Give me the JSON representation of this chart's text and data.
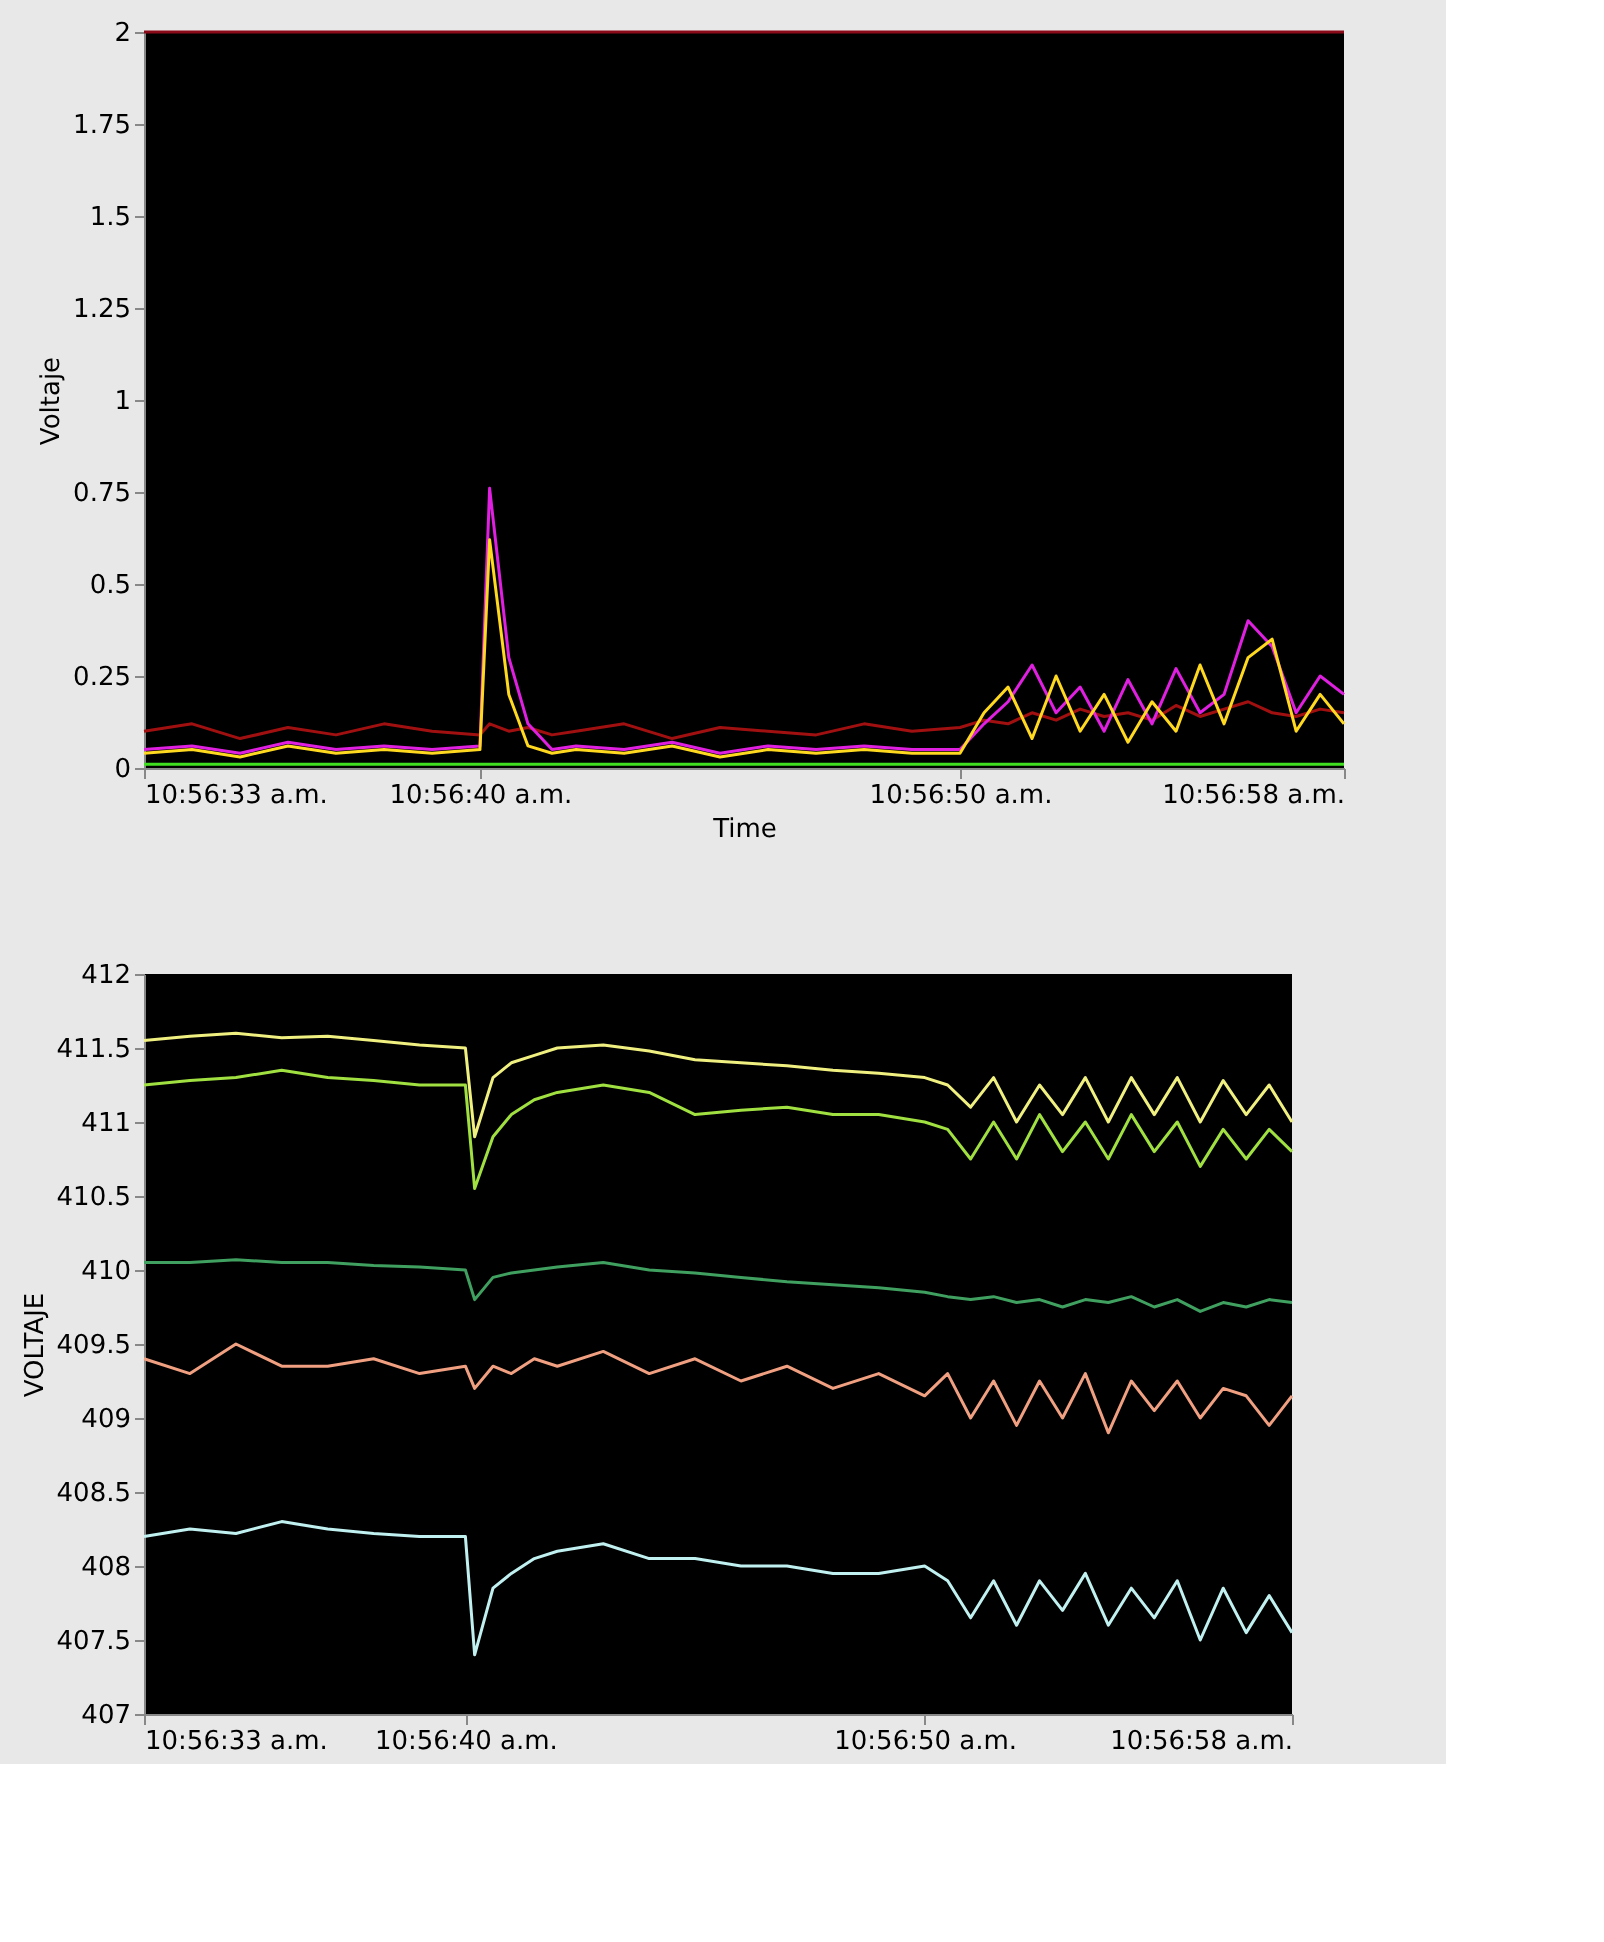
{
  "chart_data": [
    {
      "type": "line",
      "xlabel": "Time",
      "ylabel": "Voltaje",
      "ylim": [
        0,
        2
      ],
      "yticks": [
        0,
        0.25,
        0.5,
        0.75,
        1,
        1.25,
        1.5,
        1.75,
        2
      ],
      "xlim": [
        10.9425,
        10.949444
      ],
      "xticks": [
        {
          "value": 10.9425,
          "label": "10:56:33 a.m."
        },
        {
          "value": 10.944444,
          "label": "10:56:40 a.m."
        },
        {
          "value": 10.947222,
          "label": "10:56:50 a.m."
        },
        {
          "value": 10.949444,
          "label": "10:56:58 a.m."
        }
      ],
      "x": [
        10.9425,
        10.942778,
        10.943056,
        10.943333,
        10.943611,
        10.943889,
        10.944167,
        10.944444,
        10.9445,
        10.944611,
        10.944722,
        10.944861,
        10.945,
        10.945278,
        10.945556,
        10.945833,
        10.946111,
        10.946389,
        10.946667,
        10.946944,
        10.947222,
        10.947361,
        10.9475,
        10.947639,
        10.947778,
        10.947917,
        10.948056,
        10.948194,
        10.948333,
        10.948472,
        10.948611,
        10.94875,
        10.948889,
        10.949028,
        10.949167,
        10.949306,
        10.949444
      ],
      "grid": false,
      "legend": false,
      "series": [
        {
          "color": "#8b0a1a",
          "values": [
            2,
            2,
            2,
            2,
            2,
            2,
            2,
            2,
            2,
            2,
            2,
            2,
            2,
            2,
            2,
            2,
            2,
            2,
            2,
            2,
            2,
            2,
            2,
            2,
            2,
            2,
            2,
            2,
            2,
            2,
            2,
            2,
            2,
            2,
            2,
            2,
            2
          ]
        },
        {
          "color": "#a01010",
          "values": [
            0.1,
            0.12,
            0.08,
            0.11,
            0.09,
            0.12,
            0.1,
            0.09,
            0.12,
            0.1,
            0.11,
            0.09,
            0.1,
            0.12,
            0.08,
            0.11,
            0.1,
            0.09,
            0.12,
            0.1,
            0.11,
            0.13,
            0.12,
            0.15,
            0.13,
            0.16,
            0.14,
            0.15,
            0.13,
            0.17,
            0.14,
            0.16,
            0.18,
            0.15,
            0.14,
            0.16,
            0.15
          ]
        },
        {
          "color": "#e020e0",
          "values": [
            0.05,
            0.06,
            0.04,
            0.07,
            0.05,
            0.06,
            0.05,
            0.06,
            0.76,
            0.3,
            0.12,
            0.05,
            0.06,
            0.05,
            0.07,
            0.04,
            0.06,
            0.05,
            0.06,
            0.05,
            0.05,
            0.12,
            0.18,
            0.28,
            0.15,
            0.22,
            0.1,
            0.24,
            0.12,
            0.27,
            0.15,
            0.2,
            0.4,
            0.33,
            0.15,
            0.25,
            0.2
          ]
        },
        {
          "color": "#ffd820",
          "values": [
            0.04,
            0.05,
            0.03,
            0.06,
            0.04,
            0.05,
            0.04,
            0.05,
            0.62,
            0.2,
            0.06,
            0.04,
            0.05,
            0.04,
            0.06,
            0.03,
            0.05,
            0.04,
            0.05,
            0.04,
            0.04,
            0.15,
            0.22,
            0.08,
            0.25,
            0.1,
            0.2,
            0.07,
            0.18,
            0.1,
            0.28,
            0.12,
            0.3,
            0.35,
            0.1,
            0.2,
            0.12
          ]
        },
        {
          "color": "#40e020",
          "values": [
            0.01,
            0.01,
            0.01,
            0.01,
            0.01,
            0.01,
            0.01,
            0.01,
            0.01,
            0.01,
            0.01,
            0.01,
            0.01,
            0.01,
            0.01,
            0.01,
            0.01,
            0.01,
            0.01,
            0.01,
            0.01,
            0.01,
            0.01,
            0.01,
            0.01,
            0.01,
            0.01,
            0.01,
            0.01,
            0.01,
            0.01,
            0.01,
            0.01,
            0.01,
            0.01,
            0.01,
            0.01
          ]
        }
      ]
    },
    {
      "type": "line",
      "ylabel": "VOLTAJE",
      "ylim": [
        407,
        412
      ],
      "yticks": [
        407,
        407.5,
        408,
        408.5,
        409,
        409.5,
        410,
        410.5,
        411,
        411.5,
        412
      ],
      "xlim": [
        10.9425,
        10.949444
      ],
      "xticks": [
        {
          "value": 10.9425,
          "label": "10:56:33 a.m."
        },
        {
          "value": 10.944444,
          "label": "10:56:40 a.m."
        },
        {
          "value": 10.947222,
          "label": "10:56:50 a.m."
        },
        {
          "value": 10.949444,
          "label": "10:56:58 a.m."
        }
      ],
      "x": [
        10.9425,
        10.942778,
        10.943056,
        10.943333,
        10.943611,
        10.943889,
        10.944167,
        10.944444,
        10.9445,
        10.944611,
        10.944722,
        10.944861,
        10.945,
        10.945278,
        10.945556,
        10.945833,
        10.946111,
        10.946389,
        10.946667,
        10.946944,
        10.947222,
        10.947361,
        10.9475,
        10.947639,
        10.947778,
        10.947917,
        10.948056,
        10.948194,
        10.948333,
        10.948472,
        10.948611,
        10.94875,
        10.948889,
        10.949028,
        10.949167,
        10.949306,
        10.949444
      ],
      "grid": false,
      "legend": false,
      "series": [
        {
          "color": "#f0f080",
          "values": [
            411.55,
            411.58,
            411.6,
            411.57,
            411.58,
            411.55,
            411.52,
            411.5,
            410.9,
            411.3,
            411.4,
            411.45,
            411.5,
            411.52,
            411.48,
            411.42,
            411.4,
            411.38,
            411.35,
            411.33,
            411.3,
            411.25,
            411.1,
            411.3,
            411.0,
            411.25,
            411.05,
            411.3,
            411.0,
            411.3,
            411.05,
            411.3,
            411.0,
            411.28,
            411.05,
            411.25,
            411.0
          ]
        },
        {
          "color": "#a0e040",
          "values": [
            411.25,
            411.28,
            411.3,
            411.35,
            411.3,
            411.28,
            411.25,
            411.25,
            410.55,
            410.9,
            411.05,
            411.15,
            411.2,
            411.25,
            411.2,
            411.05,
            411.08,
            411.1,
            411.05,
            411.05,
            411.0,
            410.95,
            410.75,
            411.0,
            410.75,
            411.05,
            410.8,
            411.0,
            410.75,
            411.05,
            410.8,
            411.0,
            410.7,
            410.95,
            410.75,
            410.95,
            410.8
          ]
        },
        {
          "color": "#40a060",
          "values": [
            410.05,
            410.05,
            410.07,
            410.05,
            410.05,
            410.03,
            410.02,
            410.0,
            409.8,
            409.95,
            409.98,
            410.0,
            410.02,
            410.05,
            410.0,
            409.98,
            409.95,
            409.92,
            409.9,
            409.88,
            409.85,
            409.82,
            409.8,
            409.82,
            409.78,
            409.8,
            409.75,
            409.8,
            409.78,
            409.82,
            409.75,
            409.8,
            409.72,
            409.78,
            409.75,
            409.8,
            409.78
          ]
        },
        {
          "color": "#f0a080",
          "values": [
            409.4,
            409.3,
            409.5,
            409.35,
            409.35,
            409.4,
            409.3,
            409.35,
            409.2,
            409.35,
            409.3,
            409.4,
            409.35,
            409.45,
            409.3,
            409.4,
            409.25,
            409.35,
            409.2,
            409.3,
            409.15,
            409.3,
            409.0,
            409.25,
            408.95,
            409.25,
            409.0,
            409.3,
            408.9,
            409.25,
            409.05,
            409.25,
            409.0,
            409.2,
            409.15,
            408.95,
            409.15
          ]
        },
        {
          "color": "#c0f0f0",
          "values": [
            408.2,
            408.25,
            408.22,
            408.3,
            408.25,
            408.22,
            408.2,
            408.2,
            407.4,
            407.85,
            407.95,
            408.05,
            408.1,
            408.15,
            408.05,
            408.05,
            408.0,
            408.0,
            407.95,
            407.95,
            408.0,
            407.9,
            407.65,
            407.9,
            407.6,
            407.9,
            407.7,
            407.95,
            407.6,
            407.85,
            407.65,
            407.9,
            407.5,
            407.85,
            407.55,
            407.8,
            407.55
          ]
        }
      ]
    }
  ]
}
